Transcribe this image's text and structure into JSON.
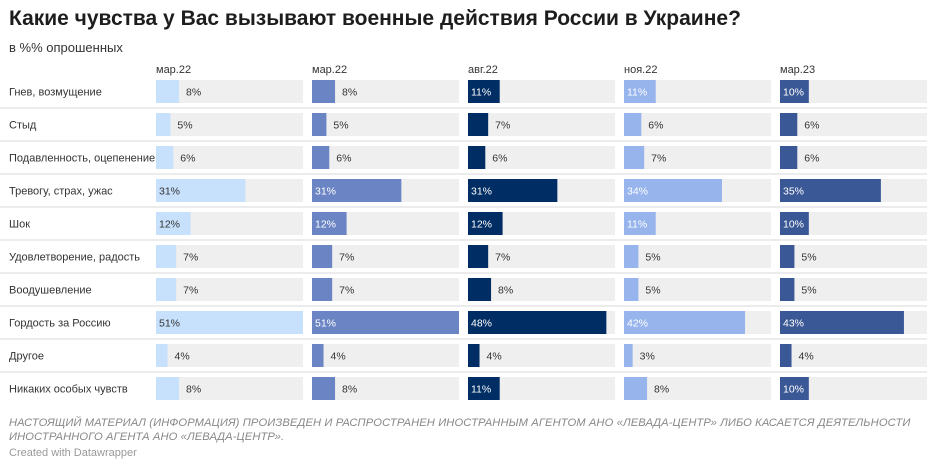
{
  "title": "Какие чувства у Вас вызывают военные действия России в Украине?",
  "subtitle": "в %% опрошенных",
  "footnote": "НАСТОЯЩИЙ МАТЕРИАЛ (ИНФОРМАЦИЯ) ПРОИЗВЕДЕН И РАСПРОСТРАНЕН ИНОСТРАННЫМ АГЕНТОМ АНО «ЛЕВАДА-ЦЕНТР» ЛИБО КАСАЕТСЯ ДЕЯТЕЛЬНОСТИ ИНОСТРАННОГО АГЕНТА АНО «ЛЕВАДА-ЦЕНТР».",
  "credit": "Created with Datawrapper",
  "chart_data": {
    "type": "bar",
    "orientation": "horizontal",
    "layout": "small-multiples",
    "value_suffix": "%",
    "xlim": [
      0,
      51
    ],
    "grid": false,
    "categories": [
      "Гнев, возмущение",
      "Стыд",
      "Подавленность, оцепенение",
      "Тревогу, страх, ужас",
      "Шок",
      "Удовлетворение, радость",
      "Воодушевление",
      "Гордость за Россию",
      "Другое",
      "Никаких особых чувств"
    ],
    "series": [
      {
        "name": "мар.22",
        "color": "#c7e0fb",
        "label_color": "#333333",
        "values": [
          8,
          5,
          6,
          31,
          12,
          7,
          7,
          51,
          4,
          8
        ]
      },
      {
        "name": "мар.22",
        "color": "#6b84c4",
        "label_color": "#ffffff",
        "values": [
          8,
          5,
          6,
          31,
          12,
          7,
          7,
          51,
          4,
          8
        ]
      },
      {
        "name": "авг.22",
        "color": "#002d63",
        "label_color": "#ffffff",
        "values": [
          11,
          7,
          6,
          31,
          12,
          7,
          8,
          48,
          4,
          11
        ]
      },
      {
        "name": "ноя.22",
        "color": "#97b4ed",
        "label_color": "#ffffff",
        "values": [
          11,
          6,
          7,
          34,
          11,
          5,
          5,
          42,
          3,
          8
        ]
      },
      {
        "name": "мар.23",
        "color": "#3b5896",
        "label_color": "#ffffff",
        "values": [
          10,
          6,
          6,
          35,
          10,
          5,
          5,
          43,
          4,
          10
        ]
      }
    ],
    "colors": {
      "track": "#efefef",
      "row_divider": "#d9d9d9",
      "category_text": "#333333",
      "outside_label": "#333333"
    }
  }
}
